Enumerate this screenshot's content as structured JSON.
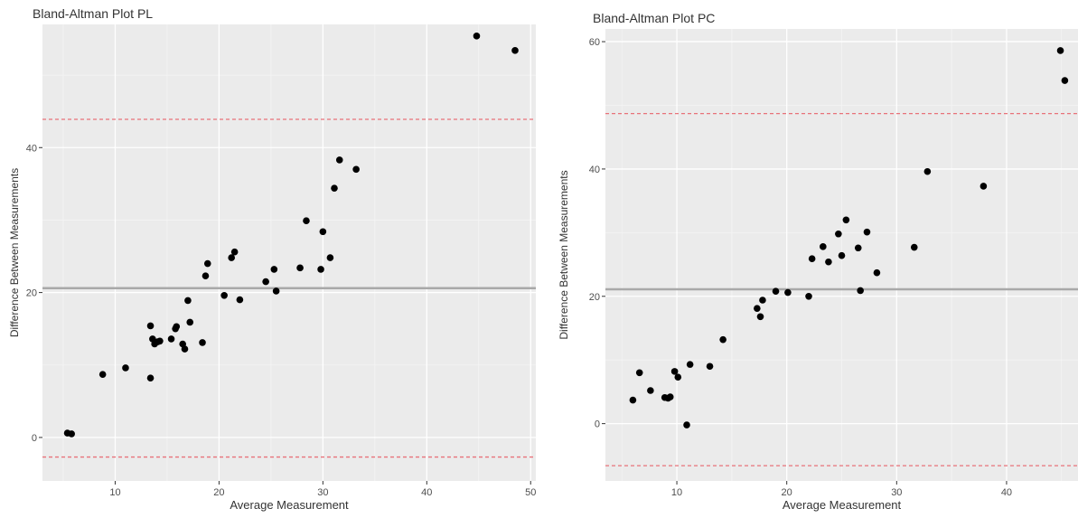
{
  "colors": {
    "panel_background": "#EBEBEB",
    "grid_major": "#FFFFFF",
    "grid_minor": "#F4F4F4",
    "points": "#000000",
    "mean_line": "#A9A9A9",
    "limit_lines": "#E8727A",
    "text": "#4D4D4D",
    "title": "#333333"
  },
  "chart_data": [
    {
      "type": "scatter",
      "title": "Bland-Altman Plot PL",
      "xlabel": "Average Measurement",
      "ylabel": "Difference Between Measurements",
      "xlim": [
        3,
        50.5
      ],
      "ylim": [
        -6,
        57
      ],
      "x_ticks": [
        10,
        20,
        30,
        40,
        50
      ],
      "y_ticks": [
        0,
        20,
        40
      ],
      "grid": true,
      "hlines": {
        "mean": 20.6,
        "upper_limit": 43.9,
        "lower_limit": -2.7
      },
      "points": [
        {
          "x": 5.4,
          "y": 0.6
        },
        {
          "x": 5.8,
          "y": 0.5
        },
        {
          "x": 8.8,
          "y": 8.7
        },
        {
          "x": 11.0,
          "y": 9.6
        },
        {
          "x": 13.4,
          "y": 8.2
        },
        {
          "x": 13.4,
          "y": 15.4
        },
        {
          "x": 13.6,
          "y": 13.6
        },
        {
          "x": 13.8,
          "y": 12.9
        },
        {
          "x": 14.1,
          "y": 13.2
        },
        {
          "x": 14.3,
          "y": 13.3
        },
        {
          "x": 15.4,
          "y": 13.6
        },
        {
          "x": 15.8,
          "y": 15.0
        },
        {
          "x": 15.9,
          "y": 15.3
        },
        {
          "x": 16.5,
          "y": 12.9
        },
        {
          "x": 16.7,
          "y": 12.2
        },
        {
          "x": 17.0,
          "y": 18.9
        },
        {
          "x": 17.2,
          "y": 15.9
        },
        {
          "x": 18.4,
          "y": 13.1
        },
        {
          "x": 18.7,
          "y": 22.3
        },
        {
          "x": 18.9,
          "y": 24.0
        },
        {
          "x": 20.5,
          "y": 19.6
        },
        {
          "x": 21.2,
          "y": 24.8
        },
        {
          "x": 21.5,
          "y": 25.6
        },
        {
          "x": 22.0,
          "y": 19.0
        },
        {
          "x": 24.5,
          "y": 21.5
        },
        {
          "x": 25.3,
          "y": 23.2
        },
        {
          "x": 25.5,
          "y": 20.2
        },
        {
          "x": 27.8,
          "y": 23.4
        },
        {
          "x": 28.4,
          "y": 29.9
        },
        {
          "x": 29.8,
          "y": 23.2
        },
        {
          "x": 30.0,
          "y": 28.4
        },
        {
          "x": 30.7,
          "y": 24.8
        },
        {
          "x": 31.1,
          "y": 34.4
        },
        {
          "x": 31.6,
          "y": 38.3
        },
        {
          "x": 33.2,
          "y": 37.0
        },
        {
          "x": 44.8,
          "y": 55.4
        },
        {
          "x": 48.5,
          "y": 53.4
        }
      ]
    },
    {
      "type": "scatter",
      "title": "Bland-Altman Plot PC",
      "xlabel": "Average Measurement",
      "ylabel": "Difference Between Measurements",
      "xlim": [
        3.5,
        46.5
      ],
      "ylim": [
        -9,
        62
      ],
      "x_ticks": [
        10,
        20,
        30,
        40
      ],
      "y_ticks": [
        0,
        20,
        40,
        60
      ],
      "grid": true,
      "hlines": {
        "mean": 21.1,
        "upper_limit": 48.7,
        "lower_limit": -6.6
      },
      "points": [
        {
          "x": 6.0,
          "y": 3.7
        },
        {
          "x": 6.6,
          "y": 8.0
        },
        {
          "x": 7.6,
          "y": 5.2
        },
        {
          "x": 8.9,
          "y": 4.1
        },
        {
          "x": 9.2,
          "y": 4.0
        },
        {
          "x": 9.4,
          "y": 4.2
        },
        {
          "x": 9.8,
          "y": 8.2
        },
        {
          "x": 10.1,
          "y": 7.3
        },
        {
          "x": 10.9,
          "y": -0.2
        },
        {
          "x": 11.2,
          "y": 9.3
        },
        {
          "x": 13.0,
          "y": 9.0
        },
        {
          "x": 14.2,
          "y": 13.2
        },
        {
          "x": 17.3,
          "y": 18.1
        },
        {
          "x": 17.6,
          "y": 16.8
        },
        {
          "x": 17.8,
          "y": 19.4
        },
        {
          "x": 19.0,
          "y": 20.8
        },
        {
          "x": 20.1,
          "y": 20.6
        },
        {
          "x": 22.0,
          "y": 20.0
        },
        {
          "x": 22.3,
          "y": 25.9
        },
        {
          "x": 23.3,
          "y": 27.8
        },
        {
          "x": 23.8,
          "y": 25.4
        },
        {
          "x": 24.7,
          "y": 29.8
        },
        {
          "x": 25.0,
          "y": 26.4
        },
        {
          "x": 25.4,
          "y": 32.0
        },
        {
          "x": 26.5,
          "y": 27.6
        },
        {
          "x": 26.7,
          "y": 20.9
        },
        {
          "x": 27.3,
          "y": 30.1
        },
        {
          "x": 28.2,
          "y": 23.7
        },
        {
          "x": 31.6,
          "y": 27.7
        },
        {
          "x": 32.8,
          "y": 39.6
        },
        {
          "x": 37.9,
          "y": 37.3
        },
        {
          "x": 44.9,
          "y": 58.6
        },
        {
          "x": 45.3,
          "y": 53.9
        }
      ]
    }
  ]
}
